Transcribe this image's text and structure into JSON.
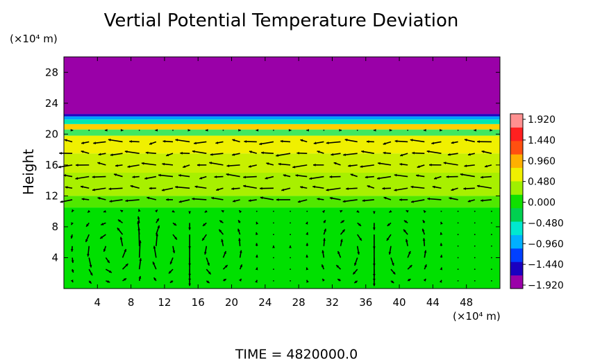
{
  "chart_data": {
    "type": "heatmap",
    "title": "Vertial Potential Temperature Deviation",
    "ylabel": "Height",
    "y_unit": "(×10⁴ m)",
    "x_unit": "(×10⁴ m)",
    "footer": "TIME = 4820000.0",
    "x_ticks": [
      "4",
      "8",
      "12",
      "16",
      "20",
      "24",
      "28",
      "32",
      "36",
      "40",
      "44",
      "48"
    ],
    "y_ticks": [
      "4",
      "8",
      "12",
      "16",
      "20",
      "24",
      "28"
    ],
    "xlim": [
      0,
      52
    ],
    "ylim": [
      0,
      30
    ],
    "colorbar": {
      "labels": [
        "1.920",
        "1.440",
        "0.960",
        "0.480",
        "0.000",
        "−0.480",
        "−0.960",
        "−1.440",
        "−1.920"
      ],
      "range": [
        -1.92,
        1.92
      ],
      "colors": [
        "#9a00a8",
        "#1a00c0",
        "#0040ff",
        "#00b0ff",
        "#00e8d0",
        "#00d050",
        "#10e000",
        "#a0f000",
        "#f0f000",
        "#ffb000",
        "#ff5010",
        "#ff2020",
        "#ff9090"
      ]
    },
    "bands": [
      {
        "y0": 0,
        "y1": 10.5,
        "value": 0.05,
        "color": "#00e000"
      },
      {
        "y0": 10.5,
        "y1": 12,
        "value": 0.3,
        "color": "#50e800"
      },
      {
        "y0": 12,
        "y1": 15,
        "value": 0.55,
        "color": "#a8f000"
      },
      {
        "y0": 15,
        "y1": 17.5,
        "value": 0.65,
        "color": "#c8f000"
      },
      {
        "y0": 17.5,
        "y1": 19.8,
        "value": 0.85,
        "color": "#f0f000"
      },
      {
        "y0": 19.8,
        "y1": 20.6,
        "value": 0.3,
        "color": "#40e860"
      },
      {
        "y0": 20.6,
        "y1": 21.3,
        "value": 1.0,
        "color": "#ffd000"
      },
      {
        "y0": 21.3,
        "y1": 21.9,
        "value": 0.2,
        "color": "#00e8b0"
      },
      {
        "y0": 21.9,
        "y1": 22.3,
        "value": -0.8,
        "color": "#00a0ff"
      },
      {
        "y0": 22.3,
        "y1": 22.6,
        "value": -1.5,
        "color": "#1a00c0"
      },
      {
        "y0": 22.6,
        "y1": 30,
        "value": -1.92,
        "color": "#9a00a8"
      }
    ],
    "vectors": "velocity field: small arrows on a regular grid, convective cells in the lower layer, strong horizontal flow near height 12–19"
  }
}
